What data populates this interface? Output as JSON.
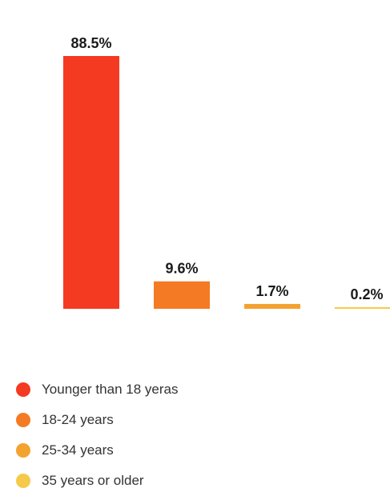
{
  "chart_data": {
    "type": "bar",
    "categories": [
      "Younger than 18 yeras",
      "18-24 years",
      "25-34 years",
      "35 years or older"
    ],
    "values": [
      88.5,
      9.6,
      1.7,
      0.2
    ],
    "value_labels": [
      "88.5%",
      "9.6%",
      "1.7%",
      "0.2%"
    ],
    "ylim": [
      0,
      88.5
    ],
    "colors": [
      "#f43a21",
      "#f47a23",
      "#f4a22f",
      "#f5c94a"
    ],
    "legend_position": "bottom-left",
    "grid": false
  }
}
